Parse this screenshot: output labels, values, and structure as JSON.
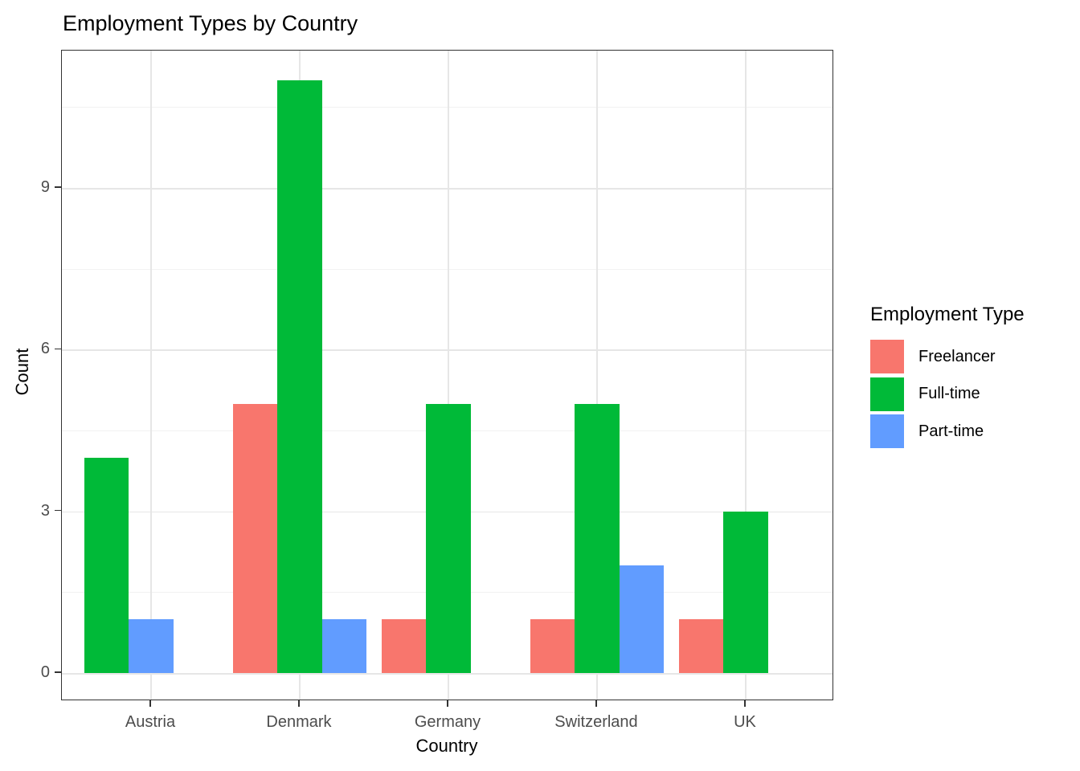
{
  "chart_data": {
    "type": "bar",
    "title": "Employment Types by Country",
    "xlabel": "Country",
    "ylabel": "Count",
    "categories": [
      "Austria",
      "Denmark",
      "Germany",
      "Switzerland",
      "UK"
    ],
    "series": [
      {
        "name": "Freelancer",
        "color": "#F8766D",
        "values": [
          0,
          5,
          1,
          1,
          1
        ]
      },
      {
        "name": "Full-time",
        "color": "#00BA38",
        "values": [
          4,
          11,
          5,
          5,
          3
        ]
      },
      {
        "name": "Part-time",
        "color": "#619CFF",
        "values": [
          1,
          1,
          0,
          2,
          0
        ]
      }
    ],
    "y_ticks": [
      0,
      3,
      6,
      9
    ],
    "ylim": [
      -0.55,
      11.55
    ],
    "bar_layout": "dodged",
    "grid": "major-and-minor",
    "legend": {
      "title": "Employment Type",
      "position": "right",
      "entries": [
        "Freelancer",
        "Full-time",
        "Part-time"
      ]
    }
  }
}
